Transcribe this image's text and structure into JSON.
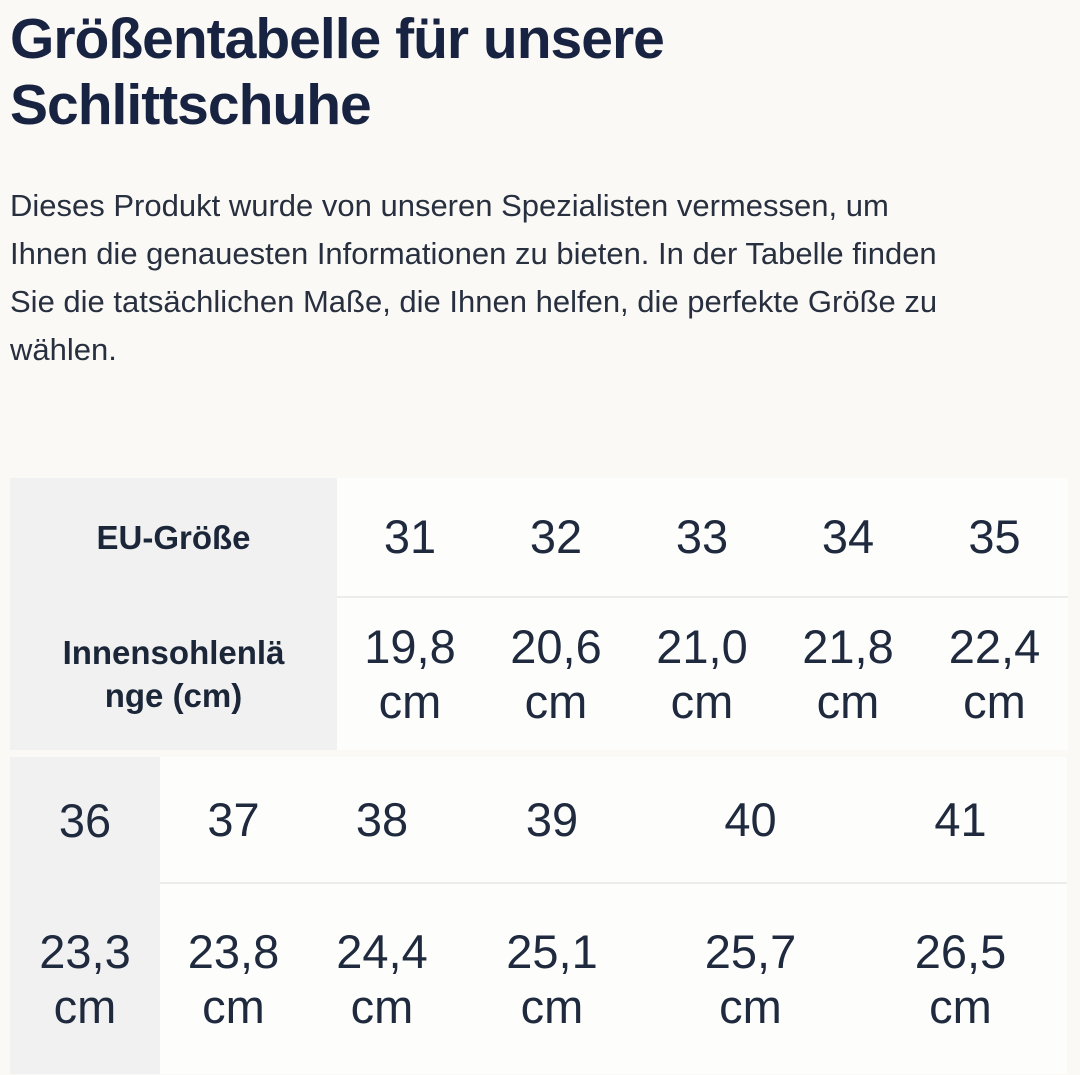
{
  "page": {
    "heading": "Größentabelle für unsere Schlittschuhe",
    "intro": "Dieses Produkt wurde von unseren Spezialisten vermessen, um Ihnen die genauesten Informationen zu bieten. In der Tabelle finden Sie die tatsächlichen Maße, die Ihnen helfen, die perfekte Größe zu wählen."
  },
  "table": {
    "label_sizes": "EU-Größe",
    "label_lengths": "Innensohlenlänge (cm)",
    "section1": {
      "sizes": [
        "31",
        "32",
        "33",
        "34",
        "35"
      ],
      "lengths": [
        "19,8 cm",
        "20,6 cm",
        "21,0 cm",
        "21,8 cm",
        "22,4 cm"
      ]
    },
    "section2": {
      "sizes": [
        "36",
        "37",
        "38",
        "39",
        "40",
        "41"
      ],
      "lengths": [
        "23,3 cm",
        "23,8 cm",
        "24,4 cm",
        "25,1 cm",
        "25,7 cm",
        "26,5 cm"
      ]
    }
  },
  "colors": {
    "heading_text": "#172340",
    "body_text": "#28303f",
    "table_text": "#1f2a3e",
    "label_cell_bg": "#f1f1f2",
    "cell_bg": "#fdfdfc",
    "page_bg": "#faf9f6",
    "divider": "#ececea"
  }
}
